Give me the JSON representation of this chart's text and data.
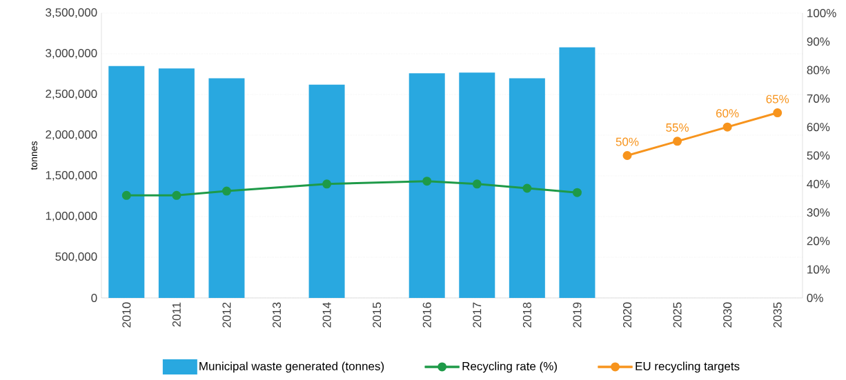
{
  "chart_data": {
    "type": "bar",
    "ylabel": "tonnes",
    "categories": [
      "2010",
      "2011",
      "2012",
      "2013",
      "2014",
      "2015",
      "2016",
      "2017",
      "2018",
      "2019",
      "2020",
      "2025",
      "2030",
      "2035"
    ],
    "series": [
      {
        "name": "Municipal waste generated (tonnes)",
        "color": "#29a8e0",
        "values": [
          2850000,
          2820000,
          2700000,
          null,
          2620000,
          null,
          2760000,
          2770000,
          2700000,
          3080000,
          null,
          null,
          null,
          null
        ]
      },
      {
        "name": "Recycling rate (%)",
        "type": "line",
        "axis": "y2",
        "color": "#1e9a48",
        "values": [
          36,
          36,
          37.5,
          null,
          40,
          null,
          41,
          40,
          38.5,
          37,
          null,
          null,
          null,
          null
        ]
      },
      {
        "name": "EU recycling targets",
        "type": "line",
        "axis": "y2",
        "color": "#f7941d",
        "values": [
          null,
          null,
          null,
          null,
          null,
          null,
          null,
          null,
          null,
          null,
          50,
          55,
          60,
          65
        ],
        "value_labels": [
          null,
          null,
          null,
          null,
          null,
          null,
          null,
          null,
          null,
          null,
          "50%",
          "55%",
          "60%",
          "65%"
        ]
      }
    ],
    "ylim": [
      0,
      3500000
    ],
    "yticks": [
      {
        "value": 0,
        "label": "0"
      },
      {
        "value": 500000,
        "label": "500,000"
      },
      {
        "value": 1000000,
        "label": "1,000,000"
      },
      {
        "value": 1500000,
        "label": "1,500,000"
      },
      {
        "value": 2000000,
        "label": "2,000,000"
      },
      {
        "value": 2500000,
        "label": "2,500,000"
      },
      {
        "value": 3000000,
        "label": "3,000,000"
      },
      {
        "value": 3500000,
        "label": "3,500,000"
      }
    ],
    "y2lim": [
      0,
      100
    ],
    "y2ticks": [
      {
        "value": 0,
        "label": "0%"
      },
      {
        "value": 10,
        "label": "10%"
      },
      {
        "value": 20,
        "label": "20%"
      },
      {
        "value": 30,
        "label": "30%"
      },
      {
        "value": 40,
        "label": "40%"
      },
      {
        "value": 50,
        "label": "50%"
      },
      {
        "value": 60,
        "label": "60%"
      },
      {
        "value": 70,
        "label": "70%"
      },
      {
        "value": 80,
        "label": "80%"
      },
      {
        "value": 90,
        "label": "90%"
      },
      {
        "value": 100,
        "label": "100%"
      }
    ],
    "grid": "y",
    "legend": "bottom",
    "marker": "circle"
  }
}
